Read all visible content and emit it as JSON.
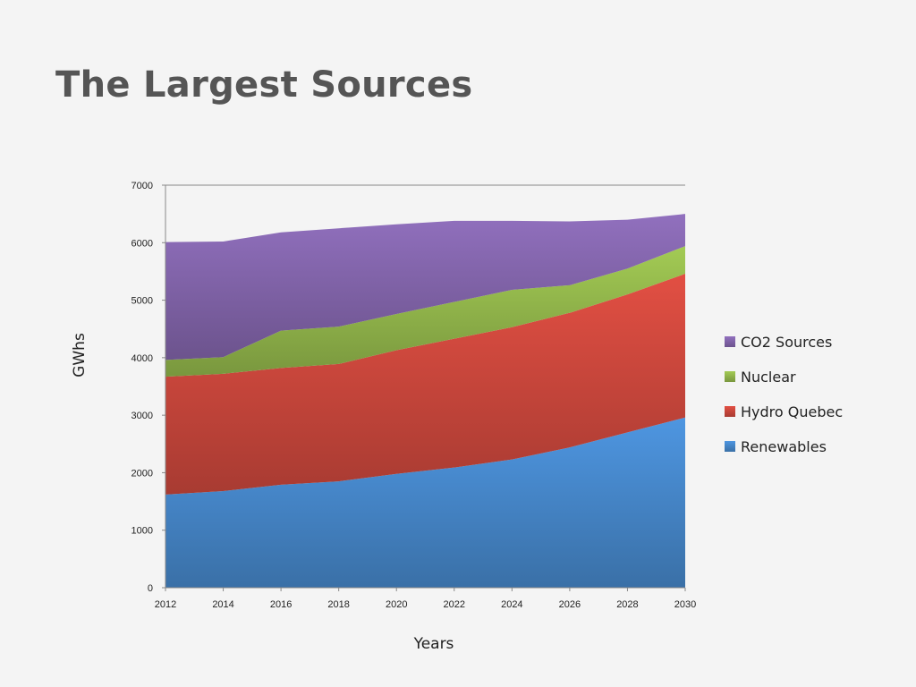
{
  "slide": {
    "title": "The Largest Sources"
  },
  "colors": {
    "renewables": "#4a8fd6",
    "hydro": "#d74b40",
    "nuclear": "#9bc150",
    "co2": "#8a6bb5"
  },
  "chart_data": {
    "type": "area",
    "stacked": true,
    "title": "",
    "xlabel": "Years",
    "ylabel": "GWhs",
    "x": [
      2012,
      2014,
      2016,
      2018,
      2020,
      2022,
      2024,
      2026,
      2028,
      2030
    ],
    "ylim": [
      0,
      7000
    ],
    "yticks": [
      0,
      1000,
      2000,
      3000,
      4000,
      5000,
      6000,
      7000
    ],
    "grid": false,
    "legend": "right",
    "series": [
      {
        "name": "Renewables",
        "color": "#4a8fd6",
        "values": [
          1620,
          1680,
          1790,
          1850,
          1980,
          2090,
          2230,
          2440,
          2700,
          2960
        ]
      },
      {
        "name": "Hydro Quebec",
        "color": "#d74b40",
        "values": [
          2050,
          2040,
          2030,
          2040,
          2150,
          2240,
          2300,
          2340,
          2400,
          2500
        ]
      },
      {
        "name": "Nuclear",
        "color": "#9bc150",
        "values": [
          290,
          290,
          650,
          650,
          630,
          640,
          650,
          480,
          450,
          480
        ]
      },
      {
        "name": "CO2 Sources",
        "color": "#8a6bb5",
        "values": [
          2050,
          2010,
          1710,
          1710,
          1560,
          1410,
          1200,
          1110,
          850,
          560
        ]
      }
    ]
  }
}
